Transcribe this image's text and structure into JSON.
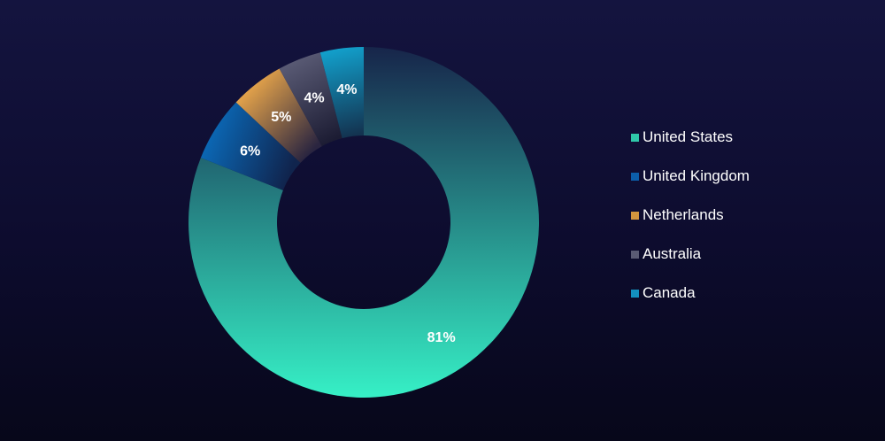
{
  "chart_data": {
    "type": "pie",
    "donut": true,
    "title": "",
    "categories": [
      "United States",
      "United Kingdom",
      "Netherlands",
      "Australia",
      "Canada"
    ],
    "values": [
      81,
      6,
      5,
      4,
      4
    ],
    "labels": [
      "81%",
      "6%",
      "5%",
      "4%",
      "4%"
    ],
    "colors": {
      "United States": {
        "start": "#17254a",
        "end": "#36f0c6"
      },
      "United Kingdom": {
        "start": "#10244d",
        "end": "#0b67b4"
      },
      "Netherlands": {
        "start": "#2a2540",
        "end": "#e3a24a"
      },
      "Australia": {
        "start": "#1c1c33",
        "end": "#595a74"
      },
      "Canada": {
        "start": "#133350",
        "end": "#12a0cc"
      }
    },
    "legend_position": "right",
    "grid": false
  },
  "legend": {
    "items": [
      {
        "label": "United States",
        "swatch": "#2fc8aa"
      },
      {
        "label": "United Kingdom",
        "swatch": "#0c5eaa"
      },
      {
        "label": "Netherlands",
        "swatch": "#d3953e"
      },
      {
        "label": "Australia",
        "swatch": "#5a5b74"
      },
      {
        "label": "Canada",
        "swatch": "#1390bf"
      }
    ]
  }
}
